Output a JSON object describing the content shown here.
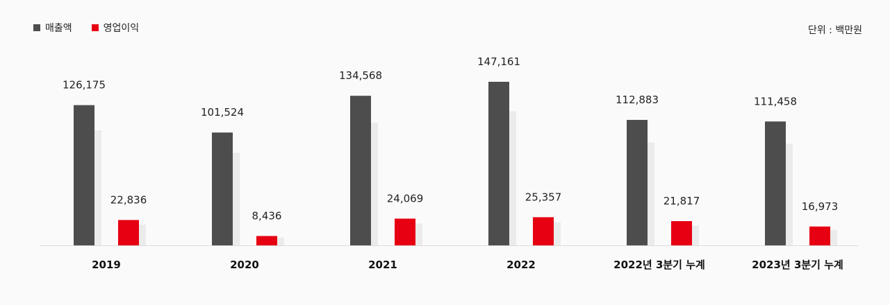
{
  "legend": {
    "revenue_label": "매출액",
    "operating_profit_label": "영업이익"
  },
  "unit_label": "단위 : 백만원",
  "colors": {
    "revenue": "#4d4d4d",
    "operating_profit": "#e60012",
    "shadow": "#ebebeb",
    "baseline": "#dddddd"
  },
  "chart_data": {
    "type": "bar",
    "categories": [
      "2019",
      "2020",
      "2021",
      "2022",
      "2022년 3분기 누계",
      "2023년 3분기 누계"
    ],
    "series": [
      {
        "name": "매출액",
        "values": [
          126175,
          101524,
          134568,
          147161,
          112883,
          111458
        ]
      },
      {
        "name": "영업이익",
        "values": [
          22836,
          8436,
          24069,
          25357,
          21817,
          16973
        ]
      }
    ],
    "value_labels": {
      "revenue": [
        "126,175",
        "101,524",
        "134,568",
        "147,161",
        "112,883",
        "111,458"
      ],
      "operating_profit": [
        "22,836",
        "8,436",
        "24,069",
        "25,357",
        "21,817",
        "16,973"
      ]
    },
    "title": "",
    "xlabel": "",
    "ylabel": "",
    "legend_position": "top-left",
    "grid": false
  }
}
